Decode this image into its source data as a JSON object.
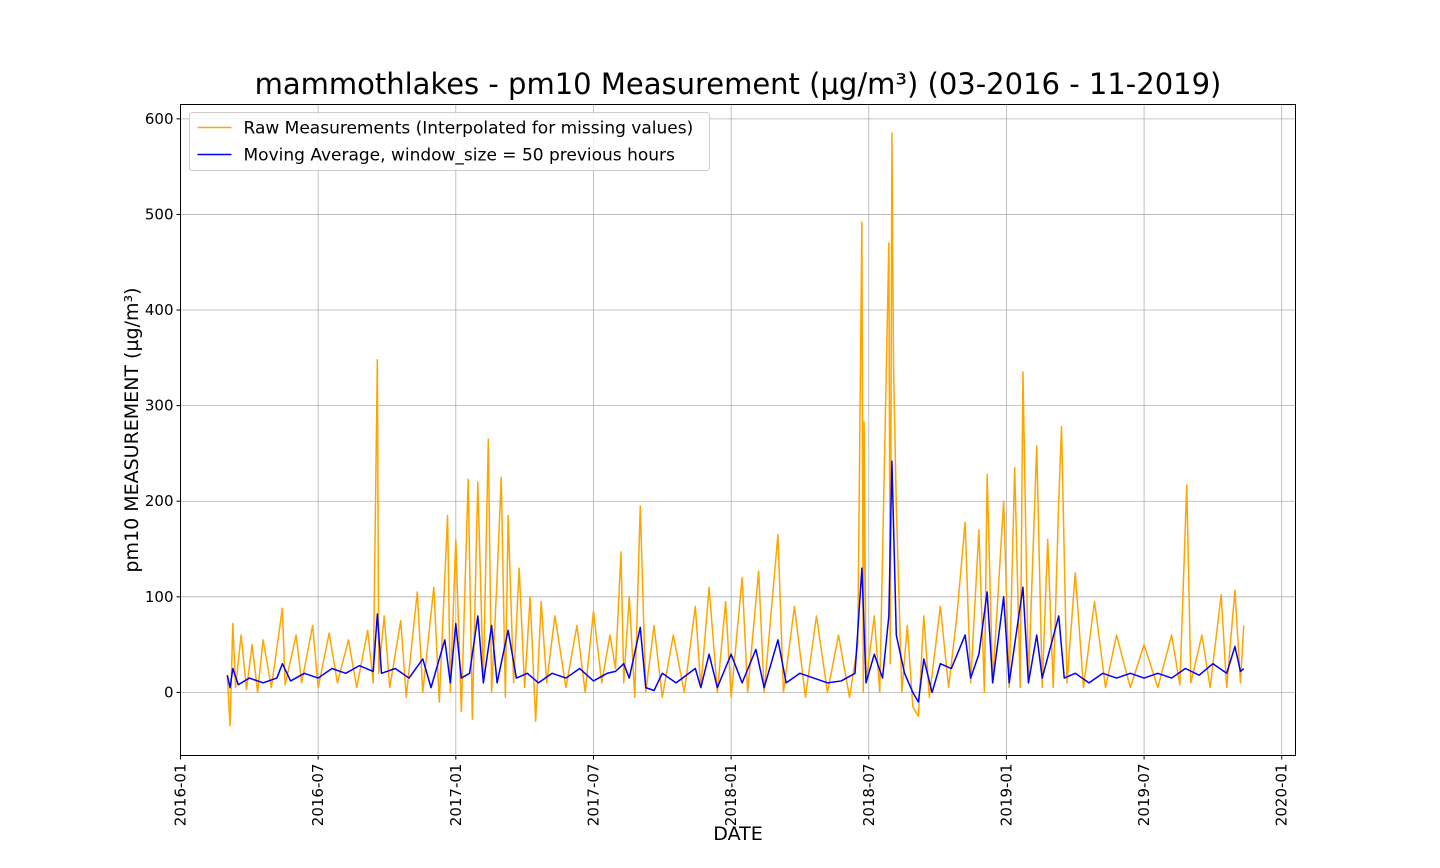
{
  "chart_data": {
    "type": "line",
    "title": "mammothlakes - pm10 Measurement (µg/m³) (03-2016 - 11-2019)",
    "x_label": "DATE",
    "y_label": "pm10 MEASUREMENT (µg/m³)",
    "xlim": [
      2016.0,
      2020.05
    ],
    "ylim": [
      -66,
      615
    ],
    "xticks": [
      {
        "value": 2016.0,
        "label": "2016-01"
      },
      {
        "value": 2016.5,
        "label": "2016-07"
      },
      {
        "value": 2017.0,
        "label": "2017-01"
      },
      {
        "value": 2017.5,
        "label": "2017-07"
      },
      {
        "value": 2018.0,
        "label": "2018-01"
      },
      {
        "value": 2018.5,
        "label": "2018-07"
      },
      {
        "value": 2019.0,
        "label": "2019-01"
      },
      {
        "value": 2019.5,
        "label": "2019-07"
      },
      {
        "value": 2020.0,
        "label": "2020-01"
      }
    ],
    "yticks": [
      0,
      100,
      200,
      300,
      400,
      500,
      600
    ],
    "grid": true,
    "legend": "upper-left",
    "series": [
      {
        "name": "Raw Measurements (Interpolated for missing values)",
        "color": "#ffa500",
        "x": [
          2016.17,
          2016.18,
          2016.19,
          2016.2,
          2016.22,
          2016.24,
          2016.26,
          2016.28,
          2016.3,
          2016.33,
          2016.37,
          2016.38,
          2016.42,
          2016.44,
          2016.48,
          2016.5,
          2016.54,
          2016.57,
          2016.61,
          2016.64,
          2016.68,
          2016.7,
          2016.715,
          2016.72,
          2016.74,
          2016.76,
          2016.8,
          2016.82,
          2016.86,
          2016.88,
          2016.92,
          2016.94,
          2016.97,
          2016.98,
          2017.0,
          2017.02,
          2017.045,
          2017.06,
          2017.08,
          2017.1,
          2017.118,
          2017.13,
          2017.15,
          2017.165,
          2017.18,
          2017.19,
          2017.21,
          2017.23,
          2017.25,
          2017.27,
          2017.29,
          2017.31,
          2017.33,
          2017.36,
          2017.4,
          2017.44,
          2017.47,
          2017.5,
          2017.53,
          2017.56,
          2017.58,
          2017.6,
          2017.61,
          2017.63,
          2017.65,
          2017.67,
          2017.69,
          2017.72,
          2017.75,
          2017.79,
          2017.83,
          2017.87,
          2017.89,
          2017.92,
          2017.95,
          2017.98,
          2018.0,
          2018.04,
          2018.06,
          2018.1,
          2018.12,
          2018.17,
          2018.19,
          2018.23,
          2018.27,
          2018.31,
          2018.35,
          2018.39,
          2018.43,
          2018.46,
          2018.475,
          2018.48,
          2018.483,
          2018.49,
          2018.52,
          2018.54,
          2018.573,
          2018.578,
          2018.584,
          2018.59,
          2018.6,
          2018.62,
          2018.64,
          2018.66,
          2018.68,
          2018.7,
          2018.72,
          2018.76,
          2018.79,
          2018.82,
          2018.85,
          2018.87,
          2018.9,
          2018.92,
          2018.93,
          2018.95,
          2018.99,
          2019.01,
          2019.03,
          2019.05,
          2019.06,
          2019.08,
          2019.11,
          2019.13,
          2019.15,
          2019.17,
          2019.19,
          2019.2,
          2019.22,
          2019.25,
          2019.28,
          2019.32,
          2019.36,
          2019.4,
          2019.45,
          2019.5,
          2019.55,
          2019.6,
          2019.63,
          2019.655,
          2019.67,
          2019.71,
          2019.74,
          2019.78,
          2019.8,
          2019.83,
          2019.85,
          2019.862
        ],
        "values": [
          18,
          -35,
          72,
          5,
          60,
          3,
          50,
          0,
          55,
          5,
          88,
          8,
          60,
          10,
          70,
          5,
          62,
          10,
          55,
          5,
          65,
          10,
          348,
          20,
          80,
          5,
          75,
          -5,
          105,
          0,
          110,
          -10,
          185,
          0,
          160,
          -20,
          223,
          -28,
          220,
          10,
          265,
          0,
          120,
          225,
          -5,
          185,
          10,
          130,
          5,
          100,
          -30,
          95,
          10,
          80,
          5,
          70,
          0,
          85,
          10,
          60,
          25,
          147,
          10,
          100,
          -5,
          195,
          0,
          70,
          -5,
          60,
          0,
          90,
          5,
          110,
          0,
          95,
          -5,
          120,
          0,
          127,
          0,
          165,
          0,
          90,
          -5,
          80,
          0,
          60,
          -5,
          50,
          492,
          0,
          283,
          10,
          80,
          0,
          470,
          30,
          585,
          340,
          195,
          0,
          70,
          -15,
          -25,
          80,
          -5,
          90,
          5,
          80,
          178,
          10,
          170,
          0,
          228,
          10,
          200,
          5,
          235,
          5,
          335,
          10,
          258,
          5,
          160,
          5,
          200,
          278,
          10,
          125,
          5,
          95,
          5,
          60,
          5,
          50,
          5,
          60,
          8,
          217,
          10,
          60,
          5,
          102,
          5,
          107,
          10,
          70
        ]
      },
      {
        "name": "Moving Average, window_size = 50 previous hours",
        "color": "#0000ff",
        "x": [
          2016.17,
          2016.18,
          2016.19,
          2016.21,
          2016.25,
          2016.3,
          2016.35,
          2016.37,
          2016.4,
          2016.45,
          2016.5,
          2016.55,
          2016.6,
          2016.65,
          2016.7,
          2016.715,
          2016.73,
          2016.78,
          2016.83,
          2016.88,
          2016.91,
          2016.96,
          2016.98,
          2017.0,
          2017.02,
          2017.05,
          2017.08,
          2017.1,
          2017.13,
          2017.15,
          2017.19,
          2017.22,
          2017.26,
          2017.3,
          2017.35,
          2017.4,
          2017.45,
          2017.5,
          2017.55,
          2017.58,
          2017.61,
          2017.63,
          2017.67,
          2017.69,
          2017.72,
          2017.75,
          2017.8,
          2017.87,
          2017.89,
          2017.92,
          2017.95,
          2018.0,
          2018.04,
          2018.09,
          2018.12,
          2018.17,
          2018.2,
          2018.25,
          2018.3,
          2018.35,
          2018.4,
          2018.45,
          2018.475,
          2018.49,
          2018.52,
          2018.55,
          2018.573,
          2018.584,
          2018.6,
          2018.63,
          2018.66,
          2018.68,
          2018.7,
          2018.73,
          2018.76,
          2018.8,
          2018.85,
          2018.87,
          2018.9,
          2018.93,
          2018.95,
          2018.99,
          2019.01,
          2019.06,
          2019.08,
          2019.11,
          2019.13,
          2019.19,
          2019.21,
          2019.25,
          2019.3,
          2019.35,
          2019.4,
          2019.45,
          2019.5,
          2019.55,
          2019.6,
          2019.65,
          2019.7,
          2019.75,
          2019.8,
          2019.83,
          2019.85,
          2019.862
        ],
        "values": [
          18,
          5,
          25,
          8,
          15,
          10,
          15,
          30,
          12,
          20,
          15,
          25,
          20,
          28,
          22,
          82,
          20,
          25,
          15,
          35,
          5,
          55,
          10,
          72,
          15,
          20,
          80,
          10,
          70,
          10,
          65,
          15,
          20,
          10,
          20,
          15,
          25,
          12,
          20,
          22,
          30,
          15,
          68,
          5,
          2,
          20,
          10,
          25,
          5,
          40,
          5,
          40,
          10,
          45,
          5,
          55,
          10,
          20,
          15,
          10,
          12,
          20,
          130,
          10,
          40,
          15,
          80,
          242,
          60,
          20,
          0,
          -10,
          35,
          0,
          30,
          25,
          60,
          15,
          40,
          105,
          10,
          100,
          10,
          110,
          10,
          60,
          15,
          80,
          15,
          20,
          10,
          20,
          15,
          20,
          15,
          20,
          15,
          25,
          18,
          30,
          20,
          48,
          22,
          25
        ]
      }
    ]
  }
}
